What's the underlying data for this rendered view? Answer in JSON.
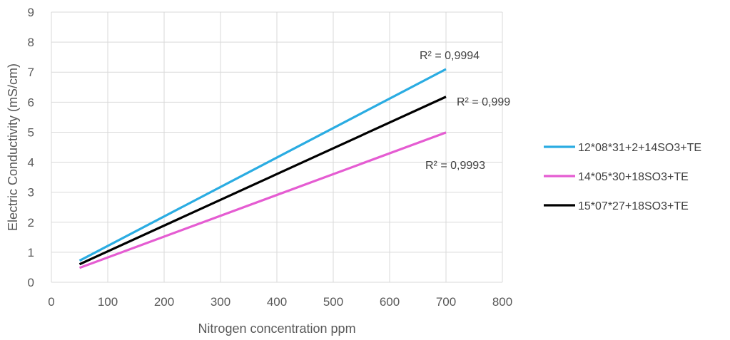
{
  "chart_data": {
    "type": "line",
    "title": "",
    "xlabel": "Nitrogen concentration ppm",
    "ylabel": "Electric Conductivity (mS/cm)",
    "xlim": [
      0,
      800
    ],
    "ylim": [
      0,
      9
    ],
    "xticks": [
      0,
      100,
      200,
      300,
      400,
      500,
      600,
      700,
      800
    ],
    "yticks": [
      0,
      1,
      2,
      3,
      4,
      5,
      6,
      7,
      8,
      9
    ],
    "grid": true,
    "legend_position": "right",
    "series": [
      {
        "name": "12*08*31+2+14SO3+TE",
        "color": "#2AACE2",
        "x": [
          50,
          700
        ],
        "y": [
          0.72,
          7.1
        ],
        "r2_label": "R² = 0,9994"
      },
      {
        "name": "14*05*30+18SO3+TE",
        "color": "#E55CD2",
        "x": [
          50,
          700
        ],
        "y": [
          0.48,
          4.99
        ],
        "r2_label": "R² = 0,9993"
      },
      {
        "name": "15*07*27+18SO3+TE",
        "color": "#000000",
        "x": [
          50,
          700
        ],
        "y": [
          0.6,
          6.18
        ],
        "r2_label": "R² = 0,999"
      }
    ]
  }
}
